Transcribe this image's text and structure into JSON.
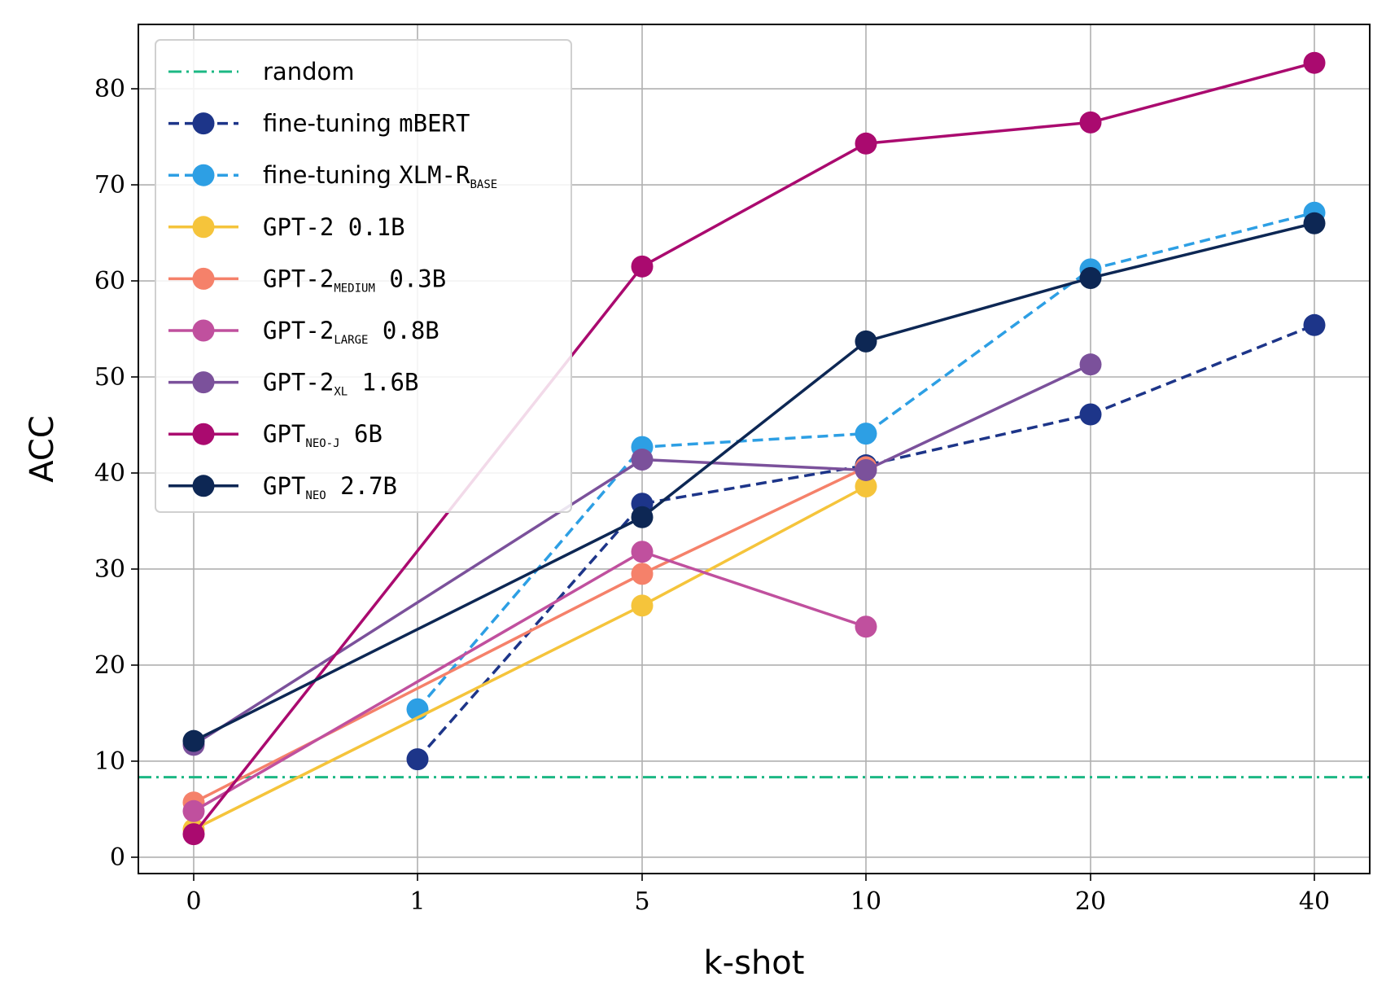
{
  "chart_data": {
    "type": "line",
    "title": "",
    "xlabel": "k-shot",
    "ylabel": "ACC",
    "categories": [
      "0",
      "1",
      "5",
      "10",
      "20",
      "40"
    ],
    "ylim": [
      -1.7,
      86.7
    ],
    "yticks": [
      0,
      10,
      20,
      30,
      40,
      50,
      60,
      70,
      80
    ],
    "grid": true,
    "legend_position": "upper-left",
    "random_baseline": {
      "name": "random",
      "value": 8.33,
      "color": "#1cb884",
      "style": "dashdot"
    },
    "series": [
      {
        "name": "fine-tuning mBERT",
        "label_parts": [
          {
            "t": "fine-tuning ",
            "f": "sans"
          },
          {
            "t": "mBERT",
            "f": "mono"
          }
        ],
        "color": "#1d3589",
        "dashed": true,
        "values": [
          null,
          10.2,
          36.8,
          40.8,
          46.1,
          55.4
        ]
      },
      {
        "name": "fine-tuning XLM-R BASE",
        "label_parts": [
          {
            "t": "fine-tuning ",
            "f": "sans"
          },
          {
            "t": "XLM-R",
            "f": "mono"
          },
          {
            "t": "BASE",
            "f": "mono",
            "sub": true
          }
        ],
        "color": "#2d9fe4",
        "dashed": true,
        "values": [
          null,
          15.4,
          42.7,
          44.1,
          61.2,
          67.1
        ]
      },
      {
        "name": "GPT-2 0.1B",
        "label_parts": [
          {
            "t": "GPT-2 0.1B",
            "f": "mono"
          }
        ],
        "color": "#f5c43b",
        "dashed": false,
        "values": [
          2.9,
          null,
          26.2,
          38.6,
          null,
          null
        ]
      },
      {
        "name": "GPT-2 MEDIUM 0.3B",
        "label_parts": [
          {
            "t": "GPT-2",
            "f": "mono"
          },
          {
            "t": "MEDIUM",
            "f": "mono",
            "sub": true
          },
          {
            "t": " 0.3B",
            "f": "mono"
          }
        ],
        "color": "#f5816a",
        "dashed": false,
        "values": [
          5.7,
          null,
          29.5,
          40.6,
          null,
          null
        ]
      },
      {
        "name": "GPT-2 LARGE 0.8B",
        "label_parts": [
          {
            "t": "GPT-2",
            "f": "mono"
          },
          {
            "t": "LARGE",
            "f": "mono",
            "sub": true
          },
          {
            "t": " 0.8B",
            "f": "mono"
          }
        ],
        "color": "#c0509e",
        "dashed": false,
        "values": [
          4.8,
          null,
          31.8,
          24.0,
          null,
          null
        ]
      },
      {
        "name": "GPT-2 XL 1.6B",
        "label_parts": [
          {
            "t": "GPT-2",
            "f": "mono"
          },
          {
            "t": "XL",
            "f": "mono",
            "sub": true
          },
          {
            "t": " 1.6B",
            "f": "mono"
          }
        ],
        "color": "#7b519b",
        "dashed": false,
        "values": [
          11.7,
          null,
          41.4,
          40.3,
          51.3,
          null
        ]
      },
      {
        "name": "GPT NEO-J 6B",
        "label_parts": [
          {
            "t": "GPT",
            "f": "mono"
          },
          {
            "t": "NEO-J",
            "f": "mono",
            "sub": true
          },
          {
            "t": " 6B",
            "f": "mono"
          }
        ],
        "color": "#aa0a6f",
        "dashed": false,
        "values": [
          2.4,
          null,
          61.5,
          74.3,
          76.5,
          82.7
        ]
      },
      {
        "name": "GPT NEO 2.7B",
        "label_parts": [
          {
            "t": "GPT",
            "f": "mono"
          },
          {
            "t": "NEO",
            "f": "mono",
            "sub": true
          },
          {
            "t": " 2.7B",
            "f": "mono"
          }
        ],
        "color": "#0d2754",
        "dashed": false,
        "values": [
          12.1,
          null,
          35.4,
          53.7,
          60.3,
          66.0
        ]
      }
    ]
  }
}
